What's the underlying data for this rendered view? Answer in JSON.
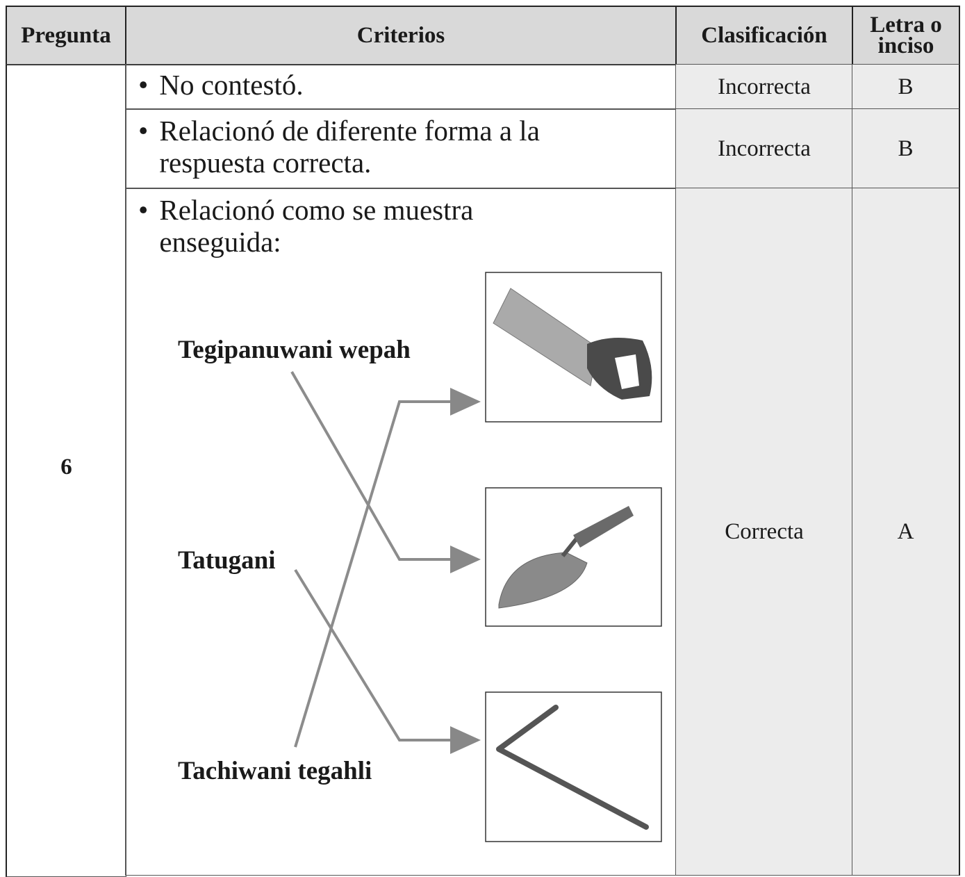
{
  "table": {
    "header": [
      "Pregunta",
      "Criterios",
      "Clasificación",
      "Letra o inciso"
    ],
    "question": "6",
    "rows": [
      {
        "criterio": "No contestó.",
        "clasificacion": "Incorrecta",
        "letra": "B"
      },
      {
        "criterio": "Relacionó de diferente forma a la respuesta correcta.",
        "clasificacion": "Incorrecta",
        "letra": "B"
      },
      {
        "criterio": "Relacionó como se muestra enseguida:",
        "clasificacion": "Correcta",
        "letra": "A"
      }
    ]
  },
  "diagram": {
    "labels": [
      "Tegipanuwani wepah",
      "Tatugani",
      "Tachiwani tegahli"
    ]
  }
}
